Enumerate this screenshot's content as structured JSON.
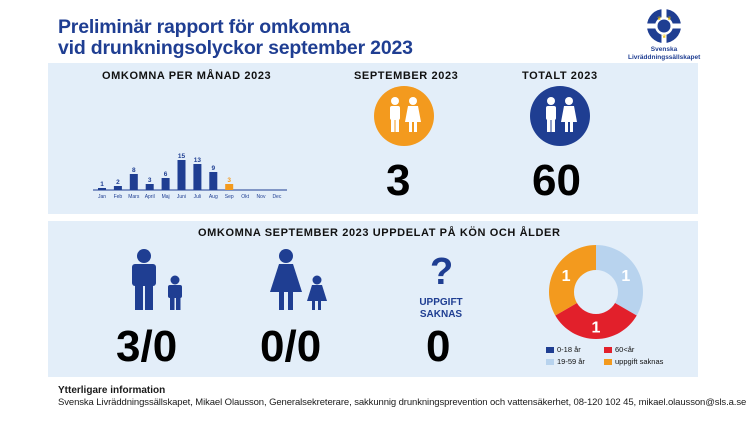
{
  "title_line1": "Preliminär rapport för omkomna",
  "title_line2": "vid drunkningsolyckor september 2023",
  "logo": {
    "line1": "Svenska",
    "line2": "Livräddningssällskapet"
  },
  "monthly": {
    "heading": "OMKOMNA PER MÅNAD 2023",
    "chart_data": {
      "type": "bar",
      "categories": [
        "Jan",
        "Feb",
        "Mars",
        "April",
        "Maj",
        "Juni",
        "Juli",
        "Aug",
        "Sep",
        "Okt",
        "Nov",
        "Dec"
      ],
      "values": [
        1,
        2,
        8,
        3,
        6,
        15,
        13,
        9,
        3,
        null,
        null,
        null
      ],
      "highlight_index": 8,
      "colors": {
        "bar": "#1f3e92",
        "highlight": "#f39a1e"
      }
    }
  },
  "september": {
    "heading": "SEPTEMBER 2023",
    "value": "3",
    "color": "#f39a1e"
  },
  "total": {
    "heading": "TOTALT 2023",
    "value": "60",
    "color": "#1f3e92"
  },
  "breakdown": {
    "heading": "OMKOMNA SEPTEMBER 2023 UPPDELAT PÅ KÖN OCH ÅLDER",
    "men": "3/0",
    "women": "0/0",
    "unknown_line1": "UPPGIFT",
    "unknown_line2": "SAKNAS",
    "unknown_value": "0",
    "question_mark": "?"
  },
  "donut": {
    "segments": [
      {
        "label": "19-59 år",
        "value": 1,
        "color": "#b8d3ee",
        "text": "1"
      },
      {
        "label": "60<år",
        "value": 1,
        "color": "#e2202b",
        "text": "1"
      },
      {
        "label": "uppgift saknas",
        "value": 1,
        "color": "#f39a1e",
        "text": "1"
      }
    ],
    "legend": [
      {
        "label": "0-18 år",
        "color": "#1f3e92"
      },
      {
        "label": "60<år",
        "color": "#e2202b"
      },
      {
        "label": "19-59 år",
        "color": "#b8d3ee"
      },
      {
        "label": "uppgift saknas",
        "color": "#f39a1e"
      }
    ]
  },
  "info": {
    "title": "Ytterligare information",
    "text": "Svenska Livräddningssällskapet, Mikael Olausson, Generalsekreterare, sakkunnig drunkningsprevention och vattensäkerhet, 08-120 102 45, mikael.olausson@sls.a.se"
  }
}
